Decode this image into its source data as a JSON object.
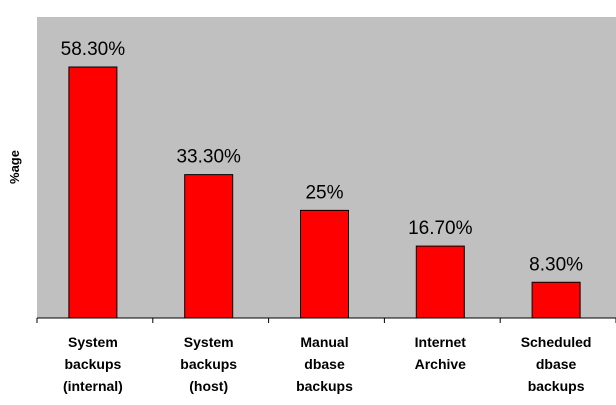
{
  "chart_data": {
    "type": "bar",
    "categories": [
      [
        "System",
        "backups",
        "(internal)"
      ],
      [
        "System",
        "backups",
        "(host)"
      ],
      [
        "Manual",
        "dbase",
        "backups"
      ],
      [
        "Internet",
        "Archive"
      ],
      [
        "Scheduled",
        "dbase",
        "backups"
      ]
    ],
    "values": [
      58.3,
      33.3,
      25,
      16.7,
      8.3
    ],
    "data_labels": [
      "58.30%",
      "33.30%",
      "25%",
      "16.70%",
      "8.30%"
    ],
    "title": "",
    "xlabel": "",
    "ylabel": "%age",
    "ylim": [
      0,
      70
    ],
    "grid": false,
    "legend": "none",
    "colors": {
      "bar": "#ff0000",
      "plot_background": "#c0c0c0"
    }
  }
}
